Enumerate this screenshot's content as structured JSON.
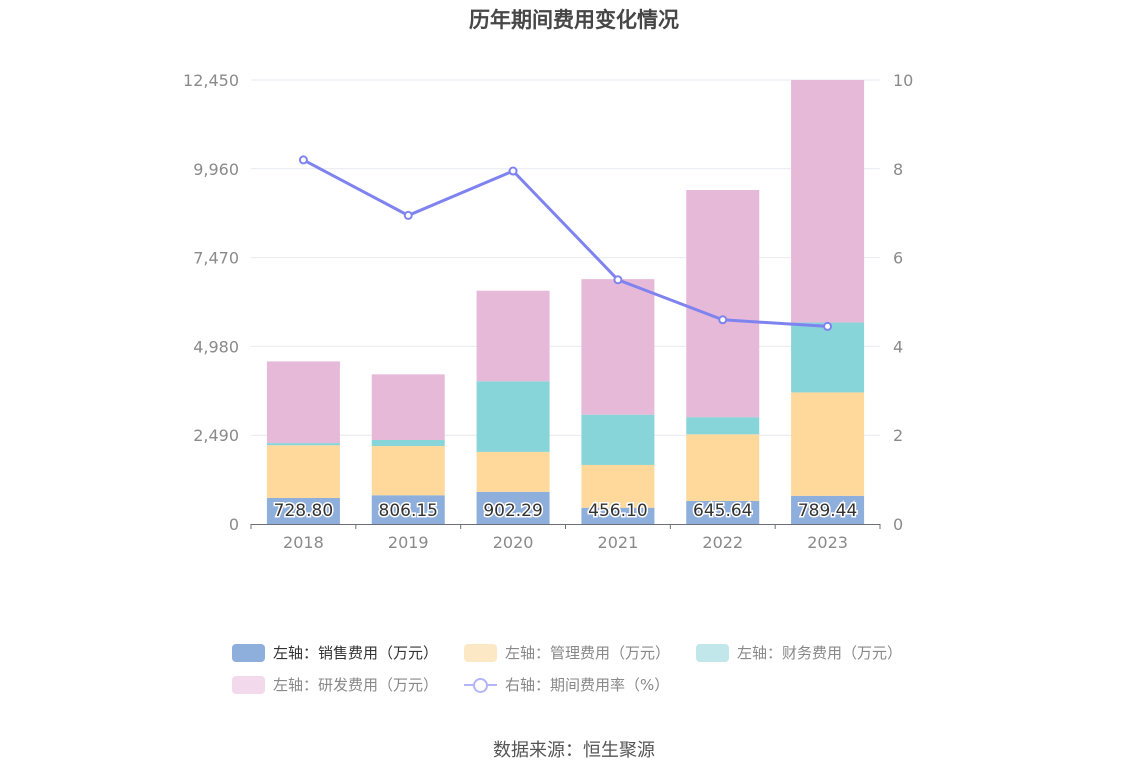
{
  "chart_data": {
    "type": "bar",
    "title": "历年期间费用变化情况",
    "categories": [
      "2018",
      "2019",
      "2020",
      "2021",
      "2022",
      "2023"
    ],
    "left_axis": {
      "ylim": [
        0,
        12450
      ],
      "ticks": [
        "0",
        "2,490",
        "4,980",
        "7,470",
        "9,960",
        "12,450"
      ]
    },
    "right_axis": {
      "ylim": [
        0,
        10
      ],
      "ticks": [
        "0",
        "2",
        "4",
        "6",
        "8",
        "10"
      ]
    },
    "series": [
      {
        "name": "左轴：销售费用（万元）",
        "type": "bar",
        "axis": "left",
        "color": "#8eaedc",
        "values": [
          728.8,
          806.15,
          902.29,
          456.1,
          645.64,
          789.44
        ],
        "labels": [
          "728.80",
          "806.15",
          "902.29",
          "456.10",
          "645.64",
          "789.44"
        ]
      },
      {
        "name": "左轴：管理费用（万元）",
        "type": "bar",
        "axis": "left",
        "color": "#fed99b",
        "values": [
          1480,
          1380,
          1120,
          1200,
          1870,
          2900
        ]
      },
      {
        "name": "左轴：财务费用（万元）",
        "type": "bar",
        "axis": "left",
        "color": "#88d5d9",
        "values": [
          60,
          170,
          1980,
          1410,
          480,
          1960
        ]
      },
      {
        "name": "左轴：研发费用（万元）",
        "type": "bar",
        "axis": "left",
        "color": "#e7b9d9",
        "values": [
          2290,
          1840,
          2540,
          3800,
          6370,
          6800
        ]
      },
      {
        "name": "右轴：期间费用率（%）",
        "type": "line",
        "axis": "right",
        "color": "#7f83f0",
        "values": [
          8.2,
          6.95,
          7.95,
          5.5,
          4.6,
          4.45
        ]
      }
    ],
    "legend_position": "bottom",
    "grid": true
  },
  "source": "数据来源：恒生聚源"
}
